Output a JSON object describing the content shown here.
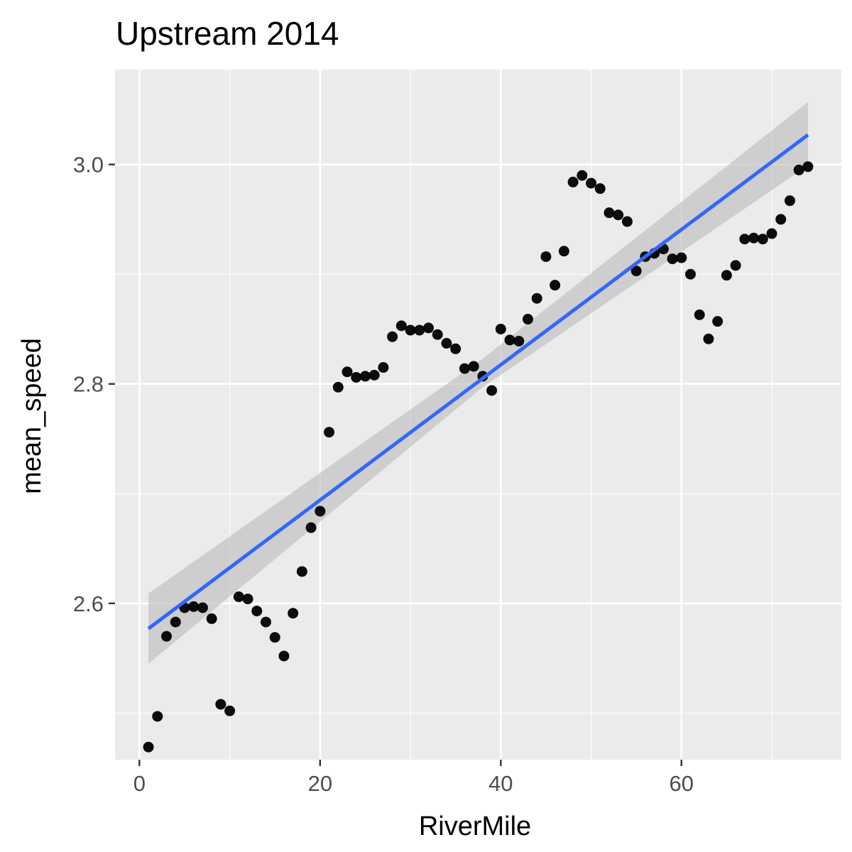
{
  "chart_data": {
    "type": "scatter",
    "title": "Upstream 2014",
    "xlabel": "RiverMile",
    "ylabel": "mean_speed",
    "xlim": [
      -2.7,
      77.7
    ],
    "ylim": [
      2.4575,
      3.0865
    ],
    "x_ticks": [
      0,
      20,
      40,
      60
    ],
    "x_tick_labels": [
      "0",
      "20",
      "40",
      "60"
    ],
    "y_ticks": [
      2.6,
      2.8,
      3.0
    ],
    "y_tick_labels": [
      "2.6",
      "2.8",
      "3.0"
    ],
    "grid": true,
    "panel_background": "#ebebeb",
    "grid_color": "#ffffff",
    "point_color": "#000000",
    "smooth_color": "#3366ff",
    "ribbon_color": "#bebebe",
    "points": [
      [
        1,
        2.469
      ],
      [
        2,
        2.497
      ],
      [
        3,
        2.57
      ],
      [
        4,
        2.583
      ],
      [
        5,
        2.596
      ],
      [
        6,
        2.597
      ],
      [
        7,
        2.596
      ],
      [
        8,
        2.586
      ],
      [
        9,
        2.508
      ],
      [
        10,
        2.502
      ],
      [
        11,
        2.606
      ],
      [
        12,
        2.604
      ],
      [
        13,
        2.593
      ],
      [
        14,
        2.583
      ],
      [
        15,
        2.569
      ],
      [
        16,
        2.552
      ],
      [
        17,
        2.591
      ],
      [
        18,
        2.629
      ],
      [
        19,
        2.669
      ],
      [
        20,
        2.684
      ],
      [
        21,
        2.756
      ],
      [
        22,
        2.797
      ],
      [
        23,
        2.811
      ],
      [
        24,
        2.806
      ],
      [
        25,
        2.807
      ],
      [
        26,
        2.808
      ],
      [
        27,
        2.815
      ],
      [
        28,
        2.843
      ],
      [
        29,
        2.853
      ],
      [
        30,
        2.849
      ],
      [
        31,
        2.849
      ],
      [
        32,
        2.851
      ],
      [
        33,
        2.845
      ],
      [
        34,
        2.837
      ],
      [
        35,
        2.832
      ],
      [
        36,
        2.814
      ],
      [
        37,
        2.816
      ],
      [
        38,
        2.807
      ],
      [
        39,
        2.794
      ],
      [
        40,
        2.85
      ],
      [
        41,
        2.84
      ],
      [
        42,
        2.839
      ],
      [
        43,
        2.859
      ],
      [
        44,
        2.878
      ],
      [
        45,
        2.916
      ],
      [
        46,
        2.89
      ],
      [
        47,
        2.921
      ],
      [
        48,
        2.984
      ],
      [
        49,
        2.99
      ],
      [
        50,
        2.983
      ],
      [
        51,
        2.978
      ],
      [
        52,
        2.956
      ],
      [
        53,
        2.954
      ],
      [
        54,
        2.948
      ],
      [
        55,
        2.903
      ],
      [
        56,
        2.916
      ],
      [
        57,
        2.919
      ],
      [
        58,
        2.923
      ],
      [
        59,
        2.914
      ],
      [
        60,
        2.915
      ],
      [
        61,
        2.9
      ],
      [
        62,
        2.863
      ],
      [
        63,
        2.841
      ],
      [
        64,
        2.857
      ],
      [
        65,
        2.899
      ],
      [
        66,
        2.908
      ],
      [
        67,
        2.932
      ],
      [
        68,
        2.933
      ],
      [
        69,
        2.932
      ],
      [
        70,
        2.937
      ],
      [
        71,
        2.95
      ],
      [
        72,
        2.967
      ],
      [
        73,
        2.995
      ],
      [
        74,
        2.998
      ]
    ],
    "smooth_line": {
      "method": "lm",
      "x": [
        1,
        74
      ],
      "y": [
        2.577,
        3.027
      ]
    },
    "confidence_band": {
      "x": [
        1,
        38,
        74
      ],
      "ymin": [
        2.545,
        2.797,
        2.999
      ],
      "ymax": [
        2.609,
        2.823,
        3.057
      ]
    }
  }
}
